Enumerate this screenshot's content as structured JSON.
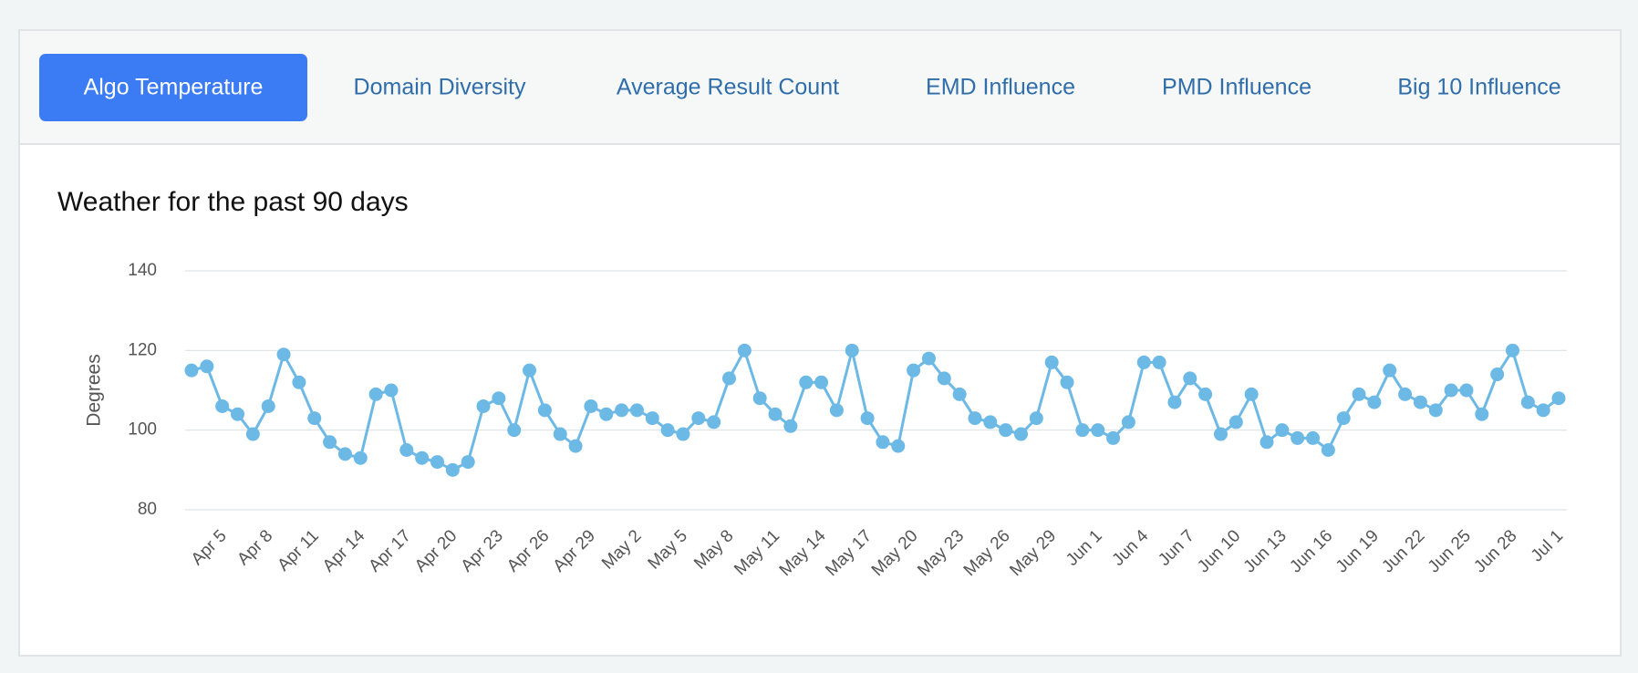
{
  "tabs": [
    "Algo Temperature",
    "Domain Diversity",
    "Average Result Count",
    "EMD Influence",
    "PMD Influence",
    "Big 10 Influence"
  ],
  "active_tab": 0,
  "chart_data": {
    "type": "line",
    "title": "Weather for the past 90 days",
    "y_label": "Degrees",
    "categories": [
      null,
      null,
      "Apr 5",
      null,
      null,
      "Apr 8",
      null,
      null,
      "Apr 11",
      null,
      null,
      "Apr 14",
      null,
      null,
      "Apr 17",
      null,
      null,
      "Apr 20",
      null,
      null,
      "Apr 23",
      null,
      null,
      "Apr 26",
      null,
      null,
      "Apr 29",
      null,
      null,
      "May 2",
      null,
      null,
      "May 5",
      null,
      null,
      "May 8",
      null,
      null,
      "May 11",
      null,
      null,
      "May 14",
      null,
      null,
      "May 17",
      null,
      null,
      "May 20",
      null,
      null,
      "May 23",
      null,
      null,
      "May 26",
      null,
      null,
      "May 29",
      null,
      null,
      "Jun 1",
      null,
      null,
      "Jun 4",
      null,
      null,
      "Jun 7",
      null,
      null,
      "Jun 10",
      null,
      null,
      "Jun 13",
      null,
      null,
      "Jun 16",
      null,
      null,
      "Jun 19",
      null,
      null,
      "Jun 22",
      null,
      null,
      "Jun 25",
      null,
      null,
      "Jun 28",
      null,
      null,
      "Jul 1"
    ],
    "values": [
      115,
      116,
      106,
      104,
      99,
      106,
      119,
      112,
      103,
      97,
      94,
      93,
      109,
      110,
      95,
      93,
      92,
      90,
      92,
      106,
      108,
      100,
      115,
      105,
      99,
      96,
      106,
      104,
      105,
      105,
      103,
      100,
      99,
      103,
      102,
      113,
      120,
      108,
      104,
      101,
      112,
      112,
      105,
      120,
      103,
      97,
      96,
      115,
      118,
      113,
      109,
      103,
      102,
      100,
      99,
      103,
      117,
      112,
      100,
      100,
      98,
      102,
      117,
      117,
      107,
      113,
      109,
      99,
      102,
      109,
      97,
      100,
      98,
      98,
      95,
      103,
      109,
      107,
      115,
      109,
      107,
      105,
      110,
      110,
      104,
      114,
      120,
      107,
      105,
      108
    ],
    "color": "#6cb9e6",
    "ylim": [
      80,
      140
    ],
    "yticks": [
      80,
      100,
      120,
      140
    ],
    "grid": true
  }
}
